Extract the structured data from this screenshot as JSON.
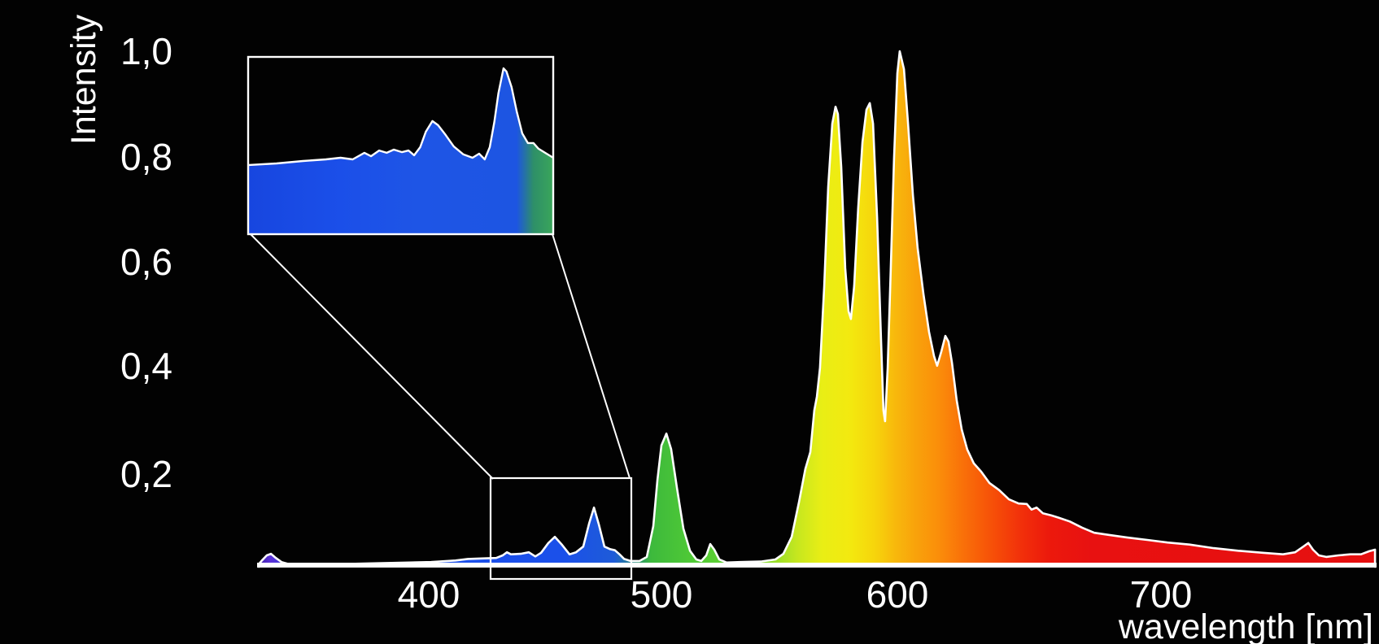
{
  "chart_data": {
    "type": "area",
    "title": "",
    "xlabel": "wavelength [nm]",
    "ylabel": "Intensity",
    "x_ticks": [
      400,
      500,
      600,
      700
    ],
    "y_ticks": [
      1.0,
      0.8,
      0.6,
      0.4,
      0.2
    ],
    "xlim_nm": [
      327,
      782
    ],
    "ylim": [
      0,
      1.0
    ],
    "grid": false,
    "legend": "none",
    "description": "Lamp emission spectrum; area fill colored by wavelength (violet-blue-green-yellow-orange-red), white outline, black background. Main peaks near 574, 588 and 601 nm (max), self-absorption notch near 595 nm, green line near 502 nm, blue lines near 454 and 471 nm, red tail with small bump near 756 nm. An inset magnifies the 427-487 nm region.",
    "series": [
      {
        "name": "spectrum",
        "points": [
          [
            327.0,
            0.002
          ],
          [
            328.3,
            0.009
          ],
          [
            330.4,
            0.019
          ],
          [
            332.2,
            0.022
          ],
          [
            334.3,
            0.014
          ],
          [
            336.7,
            0.006
          ],
          [
            339.9,
            0.002
          ],
          [
            362.6,
            0.002
          ],
          [
            380.1,
            0.004
          ],
          [
            401.0,
            0.006
          ],
          [
            411.5,
            0.009
          ],
          [
            416.8,
            0.012
          ],
          [
            422.7,
            0.013
          ],
          [
            429.0,
            0.014
          ],
          [
            431.8,
            0.019
          ],
          [
            433.6,
            0.025
          ],
          [
            435.3,
            0.021
          ],
          [
            439.5,
            0.022
          ],
          [
            443.0,
            0.025
          ],
          [
            445.8,
            0.017
          ],
          [
            448.3,
            0.024
          ],
          [
            451.4,
            0.043
          ],
          [
            454.2,
            0.055
          ],
          [
            457.0,
            0.041
          ],
          [
            460.5,
            0.021
          ],
          [
            463.3,
            0.025
          ],
          [
            466.4,
            0.036
          ],
          [
            468.9,
            0.081
          ],
          [
            471.0,
            0.112
          ],
          [
            473.1,
            0.079
          ],
          [
            475.5,
            0.036
          ],
          [
            478.0,
            0.031
          ],
          [
            480.0,
            0.029
          ],
          [
            482.0,
            0.021
          ],
          [
            484.0,
            0.012
          ],
          [
            486.7,
            0.008
          ],
          [
            490.6,
            0.008
          ],
          [
            493.7,
            0.016
          ],
          [
            496.5,
            0.076
          ],
          [
            498.3,
            0.166
          ],
          [
            500.0,
            0.233
          ],
          [
            502.1,
            0.256
          ],
          [
            504.1,
            0.226
          ],
          [
            506.6,
            0.15
          ],
          [
            509.3,
            0.071
          ],
          [
            512.1,
            0.028
          ],
          [
            514.8,
            0.011
          ],
          [
            516.9,
            0.008
          ],
          [
            519.0,
            0.019
          ],
          [
            520.7,
            0.041
          ],
          [
            522.4,
            0.03
          ],
          [
            524.5,
            0.011
          ],
          [
            527.6,
            0.005
          ],
          [
            533.4,
            0.006
          ],
          [
            542.1,
            0.007
          ],
          [
            548.3,
            0.011
          ],
          [
            551.7,
            0.022
          ],
          [
            555.2,
            0.055
          ],
          [
            558.3,
            0.123
          ],
          [
            561.0,
            0.187
          ],
          [
            563.1,
            0.22
          ],
          [
            564.8,
            0.301
          ],
          [
            565.9,
            0.328
          ],
          [
            567.2,
            0.384
          ],
          [
            569.0,
            0.543
          ],
          [
            570.7,
            0.736
          ],
          [
            572.4,
            0.859
          ],
          [
            573.8,
            0.892
          ],
          [
            574.8,
            0.878
          ],
          [
            576.2,
            0.775
          ],
          [
            577.9,
            0.578
          ],
          [
            579.3,
            0.494
          ],
          [
            580.3,
            0.479
          ],
          [
            581.7,
            0.543
          ],
          [
            583.4,
            0.696
          ],
          [
            585.2,
            0.823
          ],
          [
            586.9,
            0.886
          ],
          [
            588.3,
            0.899
          ],
          [
            589.7,
            0.859
          ],
          [
            591.4,
            0.676
          ],
          [
            593.1,
            0.435
          ],
          [
            594.1,
            0.301
          ],
          [
            594.8,
            0.28
          ],
          [
            595.9,
            0.384
          ],
          [
            597.2,
            0.578
          ],
          [
            598.6,
            0.791
          ],
          [
            600.0,
            0.957
          ],
          [
            600.9,
            1.0
          ],
          [
            602.5,
            0.965
          ],
          [
            604.0,
            0.862
          ],
          [
            605.9,
            0.72
          ],
          [
            607.7,
            0.617
          ],
          [
            609.9,
            0.527
          ],
          [
            612.0,
            0.454
          ],
          [
            613.9,
            0.407
          ],
          [
            615.1,
            0.388
          ],
          [
            616.7,
            0.416
          ],
          [
            618.2,
            0.446
          ],
          [
            619.4,
            0.435
          ],
          [
            620.7,
            0.394
          ],
          [
            622.5,
            0.321
          ],
          [
            624.4,
            0.264
          ],
          [
            626.5,
            0.225
          ],
          [
            629.0,
            0.198
          ],
          [
            631.8,
            0.182
          ],
          [
            634.9,
            0.16
          ],
          [
            638.6,
            0.146
          ],
          [
            642.3,
            0.128
          ],
          [
            646.0,
            0.12
          ],
          [
            649.1,
            0.119
          ],
          [
            650.9,
            0.108
          ],
          [
            652.8,
            0.112
          ],
          [
            655.2,
            0.101
          ],
          [
            658.3,
            0.097
          ],
          [
            661.4,
            0.092
          ],
          [
            665.4,
            0.085
          ],
          [
            670.1,
            0.073
          ],
          [
            674.7,
            0.063
          ],
          [
            679.9,
            0.059
          ],
          [
            687.0,
            0.054
          ],
          [
            694.8,
            0.049
          ],
          [
            702.5,
            0.044
          ],
          [
            710.8,
            0.04
          ],
          [
            720.0,
            0.033
          ],
          [
            729.3,
            0.028
          ],
          [
            738.6,
            0.024
          ],
          [
            746.3,
            0.021
          ],
          [
            750.9,
            0.025
          ],
          [
            754.0,
            0.036
          ],
          [
            755.9,
            0.043
          ],
          [
            757.7,
            0.03
          ],
          [
            759.9,
            0.019
          ],
          [
            762.7,
            0.016
          ],
          [
            767.3,
            0.019
          ],
          [
            771.9,
            0.021
          ],
          [
            775.9,
            0.021
          ],
          [
            779.0,
            0.027
          ],
          [
            781.2,
            0.03
          ]
        ]
      }
    ],
    "inset": {
      "magnified_range_nm": [
        426.6,
        486.7
      ],
      "note": "zoom of blue region, values are fraction of inset box height",
      "points": [
        [
          426.6,
          0.39
        ],
        [
          432.2,
          0.399
        ],
        [
          437.4,
          0.413
        ],
        [
          441.9,
          0.422
        ],
        [
          444.8,
          0.431
        ],
        [
          447.2,
          0.422
        ],
        [
          449.5,
          0.459
        ],
        [
          450.8,
          0.44
        ],
        [
          452.4,
          0.472
        ],
        [
          453.9,
          0.459
        ],
        [
          455.3,
          0.477
        ],
        [
          456.9,
          0.463
        ],
        [
          458.2,
          0.472
        ],
        [
          459.3,
          0.445
        ],
        [
          460.5,
          0.491
        ],
        [
          461.6,
          0.578
        ],
        [
          462.9,
          0.638
        ],
        [
          464.0,
          0.615
        ],
        [
          465.5,
          0.56
        ],
        [
          467.1,
          0.495
        ],
        [
          469.0,
          0.45
        ],
        [
          470.8,
          0.431
        ],
        [
          472.1,
          0.454
        ],
        [
          473.2,
          0.422
        ],
        [
          474.2,
          0.491
        ],
        [
          475.1,
          0.633
        ],
        [
          475.9,
          0.794
        ],
        [
          476.9,
          0.936
        ],
        [
          477.5,
          0.917
        ],
        [
          478.5,
          0.83
        ],
        [
          479.5,
          0.693
        ],
        [
          480.6,
          0.569
        ],
        [
          481.7,
          0.514
        ],
        [
          482.8,
          0.514
        ],
        [
          483.8,
          0.482
        ],
        [
          485.1,
          0.459
        ],
        [
          486.7,
          0.431
        ]
      ]
    }
  },
  "y_axis": {
    "title": "Intensity",
    "ticks": [
      "1,0",
      "0,8",
      "0,6",
      "0,4",
      "0,2"
    ]
  },
  "x_axis": {
    "title": "wavelength [nm]",
    "ticks": [
      "400",
      "500",
      "600",
      "700"
    ]
  },
  "colors": {
    "background": "#020202",
    "outline": "#ffffff",
    "text": "#ffffff",
    "spectral_stops": [
      [
        0.0,
        "#3c1f9e"
      ],
      [
        0.012,
        "#5a30d8"
      ],
      [
        0.026,
        "#3a3fd8"
      ],
      [
        0.061,
        "#2149e6"
      ],
      [
        0.148,
        "#1b4ee9"
      ],
      [
        0.272,
        "#1b50ea"
      ],
      [
        0.319,
        "#1e5bd8"
      ],
      [
        0.339,
        "#2c8f7a"
      ],
      [
        0.352,
        "#3db93c"
      ],
      [
        0.388,
        "#4fc936"
      ],
      [
        0.428,
        "#63d231"
      ],
      [
        0.458,
        "#8cdc2a"
      ],
      [
        0.483,
        "#c6e71f"
      ],
      [
        0.505,
        "#e9ee15"
      ],
      [
        0.53,
        "#f3e90f"
      ],
      [
        0.552,
        "#f6d50c"
      ],
      [
        0.57,
        "#f8b90c"
      ],
      [
        0.588,
        "#f9a30b"
      ],
      [
        0.61,
        "#fa8d0a"
      ],
      [
        0.632,
        "#f96f09"
      ],
      [
        0.658,
        "#f64f08"
      ],
      [
        0.683,
        "#f2300a"
      ],
      [
        0.708,
        "#ec190c"
      ],
      [
        0.745,
        "#e81111"
      ],
      [
        1.0,
        "#e60f0f"
      ]
    ],
    "inset_stops": [
      [
        0.0,
        "#1746df"
      ],
      [
        0.3,
        "#1b4fe9"
      ],
      [
        0.55,
        "#1e55e6"
      ],
      [
        0.88,
        "#1d55e2"
      ],
      [
        0.935,
        "#2e8f68"
      ],
      [
        1.0,
        "#3aa65a"
      ]
    ]
  }
}
